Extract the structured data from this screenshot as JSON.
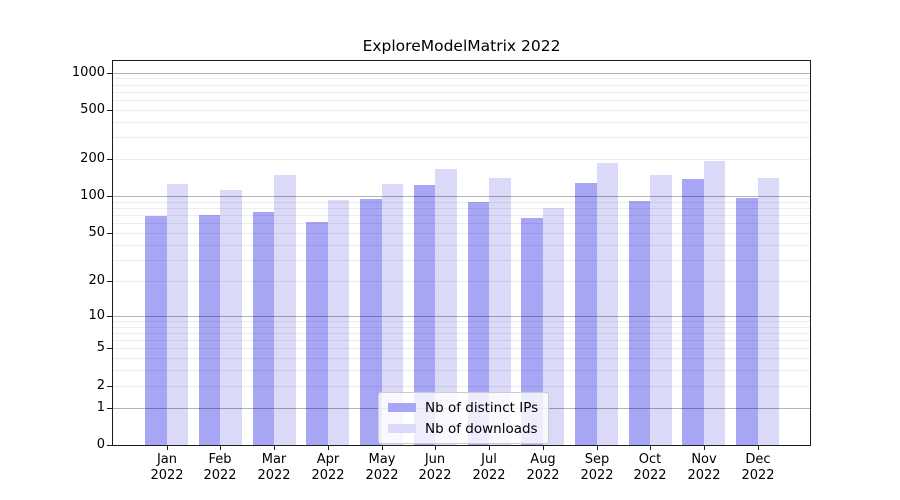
{
  "title": "ExploreModelMatrix 2022",
  "chart_data": {
    "type": "bar",
    "title": "ExploreModelMatrix 2022",
    "categories": [
      "Jan",
      "Feb",
      "Mar",
      "Apr",
      "May",
      "Jun",
      "Jul",
      "Aug",
      "Sep",
      "Oct",
      "Nov",
      "Dec"
    ],
    "category_year": "2022",
    "series": [
      {
        "name": "Nb of distinct IPs",
        "color": "#a6a6f4",
        "values": [
          69,
          71,
          75,
          62,
          95,
          124,
          89,
          66,
          128,
          92,
          139,
          97
        ]
      },
      {
        "name": "Nb of downloads",
        "color": "#dadaf8",
        "values": [
          125,
          113,
          150,
          93,
          125,
          165,
          140,
          81,
          186,
          150,
          193,
          141
        ]
      }
    ],
    "xlabel": "",
    "ylabel": "",
    "yscale": "log10(1+y)",
    "ylim": [
      0,
      1240
    ],
    "ytick_labels": [
      1000,
      500,
      200,
      100,
      50,
      20,
      10,
      5,
      2,
      1,
      0
    ],
    "grid": true,
    "grid_major": [
      1,
      10,
      100,
      1000
    ],
    "grid_minor": [
      2,
      3,
      4,
      5,
      6,
      7,
      8,
      9,
      20,
      30,
      40,
      50,
      60,
      70,
      80,
      90,
      200,
      300,
      400,
      500,
      600,
      700,
      800,
      900
    ],
    "legend_position": "lower center"
  }
}
